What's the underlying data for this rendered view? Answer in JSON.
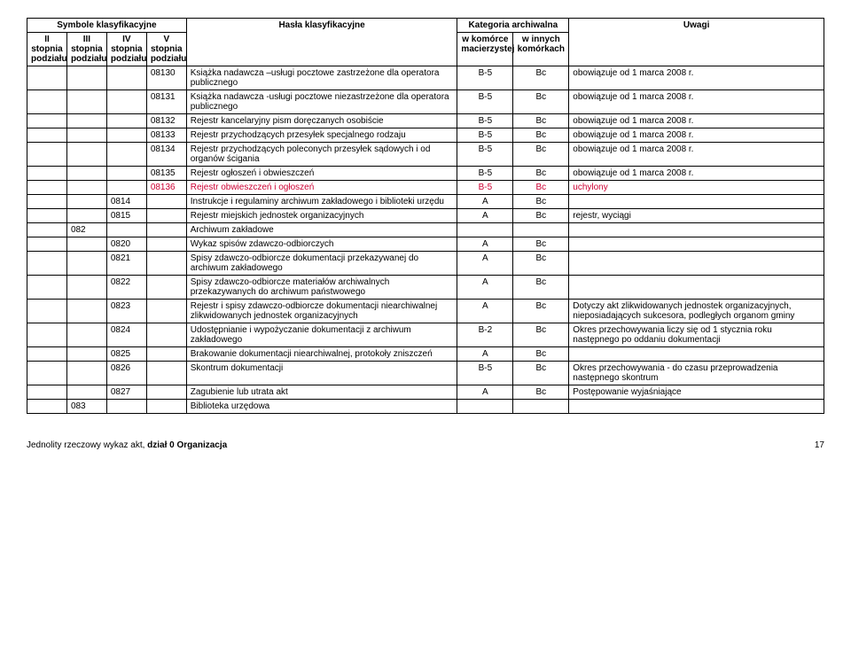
{
  "headers": {
    "group1": "Symbole klasyfikacyjne",
    "group2": "Kategoria archiwalna",
    "col1": "II stopnia podziału",
    "col2": "III stopnia podziału",
    "col3": "IV stopnia podziału",
    "col4": "V stopnia podziału",
    "col5": "Hasła klasyfikacyjne",
    "col6": "w komórce macierzystej",
    "col7": "w innych komórkach",
    "col8": "Uwagi"
  },
  "rows": [
    {
      "c1": "",
      "c2": "",
      "c3": "",
      "c4": "08130",
      "c5": "Książka nadawcza –usługi pocztowe zastrzeżone dla operatora publicznego",
      "c6": "B-5",
      "c7": "Bc",
      "c8": "obowiązuje od 1 marca 2008 r."
    },
    {
      "c1": "",
      "c2": "",
      "c3": "",
      "c4": "08131",
      "c5": "Książka nadawcza -usługi pocztowe niezastrzeżone dla operatora publicznego",
      "c6": "B-5",
      "c7": "Bc",
      "c8": "obowiązuje od 1 marca 2008 r."
    },
    {
      "c1": "",
      "c2": "",
      "c3": "",
      "c4": "08132",
      "c5": "Rejestr kancelaryjny pism doręczanych osobiście",
      "c6": "B-5",
      "c7": "Bc",
      "c8": "obowiązuje od 1 marca 2008 r."
    },
    {
      "c1": "",
      "c2": "",
      "c3": "",
      "c4": "08133",
      "c5": "Rejestr przychodzących przesyłek specjalnego rodzaju",
      "c6": "B-5",
      "c7": "Bc",
      "c8": "obowiązuje od 1 marca 2008 r."
    },
    {
      "c1": "",
      "c2": "",
      "c3": "",
      "c4": "08134",
      "c5": "Rejestr przychodzących poleconych przesyłek sądowych i od organów ścigania",
      "c6": "B-5",
      "c7": "Bc",
      "c8": "obowiązuje od 1 marca 2008 r."
    },
    {
      "c1": "",
      "c2": "",
      "c3": "",
      "c4": "08135",
      "c5": "Rejestr ogłoszeń i obwieszczeń",
      "c6": "B-5",
      "c7": "Bc",
      "c8": "obowiązuje od 1 marca 2008 r."
    },
    {
      "red": true,
      "c1": "",
      "c2": "",
      "c3": "",
      "c4": "08136",
      "c5": "Rejestr obwieszczeń i ogłoszeń",
      "c6": "B-5",
      "c7": "Bc",
      "c8": "uchylony"
    },
    {
      "c1": "",
      "c2": "",
      "c3": "0814",
      "c4": "",
      "c5": "Instrukcje i regulaminy archiwum zakładowego i biblioteki urzędu",
      "c6": "A",
      "c7": "Bc",
      "c8": ""
    },
    {
      "c1": "",
      "c2": "",
      "c3": "0815",
      "c4": "",
      "c5": "Rejestr miejskich jednostek organizacyjnych",
      "c6": "A",
      "c7": "Bc",
      "c8": "rejestr, wyciągi"
    },
    {
      "c1": "",
      "c2": "082",
      "c3": "",
      "c4": "",
      "c5": "Archiwum zakładowe",
      "c6": "",
      "c7": "",
      "c8": ""
    },
    {
      "c1": "",
      "c2": "",
      "c3": "0820",
      "c4": "",
      "c5": "Wykaz spisów zdawczo-odbiorczych",
      "c6": "A",
      "c7": "Bc",
      "c8": ""
    },
    {
      "c1": "",
      "c2": "",
      "c3": "0821",
      "c4": "",
      "c5": "Spisy zdawczo-odbiorcze dokumentacji przekazywanej do archiwum zakładowego",
      "c6": "A",
      "c7": "Bc",
      "c8": ""
    },
    {
      "c1": "",
      "c2": "",
      "c3": "0822",
      "c4": "",
      "c5": "Spisy zdawczo-odbiorcze materiałów archiwalnych przekazywanych do archiwum państwowego",
      "c6": "A",
      "c7": "Bc",
      "c8": ""
    },
    {
      "c1": "",
      "c2": "",
      "c3": "0823",
      "c4": "",
      "c5": "Rejestr i spisy zdawczo-odbiorcze dokumentacji niearchiwalnej zlikwidowanych jednostek organizacyjnych",
      "c6": "A",
      "c7": "Bc",
      "c8": "Dotyczy akt zlikwidowanych jednostek organizacyjnych, nieposiadających sukcesora, podległych organom gminy"
    },
    {
      "c1": "",
      "c2": "",
      "c3": "0824",
      "c4": "",
      "c5": "Udostępnianie i wypożyczanie dokumentacji z archiwum zakładowego",
      "c6": "B-2",
      "c7": "Bc",
      "c8": "Okres przechowywania liczy się od 1 stycznia roku następnego po oddaniu dokumentacji"
    },
    {
      "c1": "",
      "c2": "",
      "c3": "0825",
      "c4": "",
      "c5": "Brakowanie dokumentacji niearchiwalnej, protokoły zniszczeń",
      "c6": "A",
      "c7": "Bc",
      "c8": ""
    },
    {
      "c1": "",
      "c2": "",
      "c3": "0826",
      "c4": "",
      "c5": "Skontrum dokumentacji",
      "c6": "B-5",
      "c7": "Bc",
      "c8": "Okres przechowywania - do czasu przeprowadzenia następnego skontrum"
    },
    {
      "c1": "",
      "c2": "",
      "c3": "0827",
      "c4": "",
      "c5": "Zagubienie lub utrata akt",
      "c6": "A",
      "c7": "Bc",
      "c8": "Postępowanie wyjaśniające"
    },
    {
      "c1": "",
      "c2": "083",
      "c3": "",
      "c4": "",
      "c5": "Biblioteka urzędowa",
      "c6": "",
      "c7": "",
      "c8": ""
    }
  ],
  "footer": {
    "left_prefix": "Jednolity rzeczowy wykaz akt, ",
    "left_bold": "dział 0 Organizacja",
    "page": "17"
  }
}
